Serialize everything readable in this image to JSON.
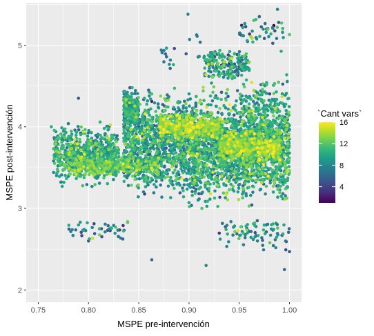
{
  "chart_data": {
    "type": "scatter",
    "xlabel": "MSPE pre-intervención",
    "ylabel": "MSPE post-intervención",
    "xlim": [
      0.738,
      1.012
    ],
    "ylim": [
      1.85,
      5.52
    ],
    "x_ticks": [
      0.75,
      0.8,
      0.85,
      0.9,
      0.95,
      1.0
    ],
    "x_tick_labels": [
      "0.75",
      "0.80",
      "0.85",
      "0.90",
      "0.95",
      "1.00"
    ],
    "y_ticks": [
      2,
      3,
      4,
      5
    ],
    "y_tick_labels": [
      "2",
      "3",
      "4",
      "5"
    ],
    "grid": true,
    "panel_background": "#ebebeb",
    "grid_color": "#ffffff",
    "color_scale": {
      "name": "viridis",
      "title": "`Cant vars`",
      "min": 1,
      "max": 16,
      "ticks": [
        4,
        8,
        12,
        16
      ],
      "tick_labels": [
        "4",
        "8",
        "12",
        "16"
      ],
      "colors": [
        "#440154",
        "#482878",
        "#3e4a89",
        "#31688e",
        "#26828e",
        "#1f9e89",
        "#35b779",
        "#6ece58",
        "#b5de2b",
        "#fde725"
      ]
    },
    "legend_position": "right",
    "clusters": [
      {
        "x": [
          0.765,
          0.83
        ],
        "y": [
          3.2,
          4.1
        ],
        "n": 650,
        "color_mean": 9.5,
        "color_sd": 2.0
      },
      {
        "x": [
          0.835,
          0.9
        ],
        "y": [
          3.0,
          4.6
        ],
        "n": 1000,
        "color_mean": 9.0,
        "color_sd": 2.3
      },
      {
        "x": [
          0.9,
          0.95
        ],
        "y": [
          2.9,
          4.6
        ],
        "n": 950,
        "color_mean": 9.3,
        "color_sd": 2.3
      },
      {
        "x": [
          0.95,
          1.0
        ],
        "y": [
          2.9,
          4.7
        ],
        "n": 1100,
        "color_mean": 9.8,
        "color_sd": 2.2
      },
      {
        "x": [
          0.87,
          0.93
        ],
        "y": [
          3.8,
          4.2
        ],
        "n": 500,
        "color_mean": 12.8,
        "color_sd": 1.5
      },
      {
        "x": [
          0.93,
          0.99
        ],
        "y": [
          3.5,
          4.0
        ],
        "n": 550,
        "color_mean": 12.8,
        "color_sd": 1.5
      },
      {
        "x": [
          0.78,
          0.87
        ],
        "y": [
          3.35,
          3.7
        ],
        "n": 350,
        "color_mean": 11.8,
        "color_sd": 1.6
      },
      {
        "x": [
          0.835,
          0.85
        ],
        "y": [
          3.95,
          4.55
        ],
        "n": 160,
        "color_mean": 9.0,
        "color_sd": 2.0
      },
      {
        "x": [
          0.915,
          0.96
        ],
        "y": [
          4.5,
          5.0
        ],
        "n": 190,
        "color_mean": 8.5,
        "color_sd": 2.5
      },
      {
        "x": [
          0.95,
          0.995
        ],
        "y": [
          4.9,
          5.45
        ],
        "n": 45,
        "color_mean": 8.0,
        "color_sd": 2.5
      },
      {
        "x": [
          0.78,
          0.84
        ],
        "y": [
          2.55,
          2.95
        ],
        "n": 45,
        "color_mean": 7.5,
        "color_sd": 2.5
      },
      {
        "x": [
          0.93,
          1.0
        ],
        "y": [
          2.45,
          2.95
        ],
        "n": 80,
        "color_mean": 8.0,
        "color_sd": 2.5
      },
      {
        "x": [
          0.87,
          0.93
        ],
        "y": [
          4.6,
          5.2
        ],
        "n": 25,
        "color_mean": 7.5,
        "color_sd": 2.5
      }
    ],
    "outliers": [
      {
        "x": 0.899,
        "y": 5.38,
        "v": 8
      },
      {
        "x": 0.917,
        "y": 2.3,
        "v": 8
      },
      {
        "x": 0.863,
        "y": 2.37,
        "v": 6
      },
      {
        "x": 0.988,
        "y": 5.44,
        "v": 7
      },
      {
        "x": 0.995,
        "y": 2.25,
        "v": 6
      },
      {
        "x": 0.763,
        "y": 4.0,
        "v": 10
      },
      {
        "x": 1.0,
        "y": 5.13,
        "v": 12
      },
      {
        "x": 0.79,
        "y": 4.35,
        "v": 5
      },
      {
        "x": 0.97,
        "y": 5.35,
        "v": 6
      },
      {
        "x": 0.8,
        "y": 2.6,
        "v": 5
      },
      {
        "x": 1.0,
        "y": 2.47,
        "v": 5
      }
    ]
  }
}
